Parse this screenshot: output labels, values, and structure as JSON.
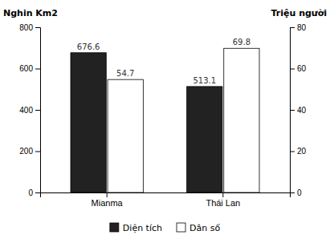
{
  "chart_data": {
    "type": "bar",
    "categories": [
      "Mianma",
      "Thái Lan"
    ],
    "series": [
      {
        "name": "Diện tích",
        "color": "#222222",
        "values": [
          676.6,
          513.1
        ]
      },
      {
        "name": "Dân số",
        "color": "#ffffff",
        "values": [
          54.7,
          69.8
        ],
        "axis": "y2"
      }
    ],
    "ylabel": "Nghin Km2",
    "y2label": "Triệu người",
    "ylim": [
      0,
      800
    ],
    "yticks": [
      0,
      200,
      400,
      600,
      800
    ],
    "y2lim": [
      0,
      80
    ],
    "y2ticks": [
      0,
      20,
      40,
      60,
      80
    ],
    "data_labels": true,
    "legend": "bottom"
  }
}
